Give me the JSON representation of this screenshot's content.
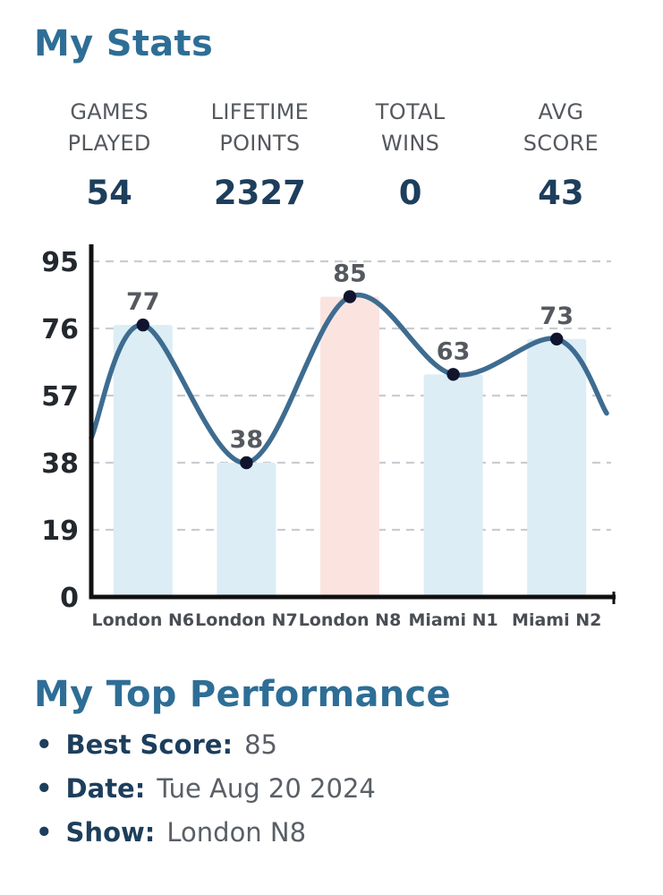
{
  "colors": {
    "heading": "#2e6e96",
    "stat_value": "#1d3e5c",
    "stat_label": "#55595e"
  },
  "icons": {
    "bullet": "•"
  },
  "header": {
    "title": "My Stats"
  },
  "stats": [
    {
      "label_line1": "GAMES",
      "label_line2": "PLAYED",
      "value": "54"
    },
    {
      "label_line1": "LIFETIME",
      "label_line2": "POINTS",
      "value": "2327"
    },
    {
      "label_line1": "TOTAL",
      "label_line2": "WINS",
      "value": "0"
    },
    {
      "label_line1": "AVG",
      "label_line2": "SCORE",
      "value": "43"
    }
  ],
  "chart_data": {
    "type": "bar",
    "subtype": "bars-with-smooth-line-overlay",
    "categories": [
      "London N6",
      "London N7",
      "London N8",
      "Miami N1",
      "Miami N2"
    ],
    "values": [
      77,
      38,
      85,
      63,
      73
    ],
    "highlighted_category": "London N8",
    "y_ticks": [
      0,
      19,
      38,
      57,
      76,
      95
    ],
    "ylim": [
      0,
      95
    ],
    "grid": "dashed-horizontal",
    "legend": "none",
    "title": "",
    "xlabel": "",
    "ylabel": "",
    "line_edge_values": [
      45,
      52
    ],
    "colors": {
      "bar": "#dcedf6",
      "highlight_bar": "#fbe4e0",
      "line": "#3e6c90",
      "point": "#11142e",
      "grid": "#c9cdd2",
      "axis": "#101010",
      "tick_label": "#23282e",
      "value_label": "#55595f",
      "x_label": "#4a4e54"
    }
  },
  "top_performance": {
    "title": "My Top Performance",
    "items": [
      {
        "label": "Best Score:",
        "value": "85"
      },
      {
        "label": "Date:",
        "value": "Tue Aug 20 2024"
      },
      {
        "label": "Show:",
        "value": "London N8"
      }
    ]
  }
}
